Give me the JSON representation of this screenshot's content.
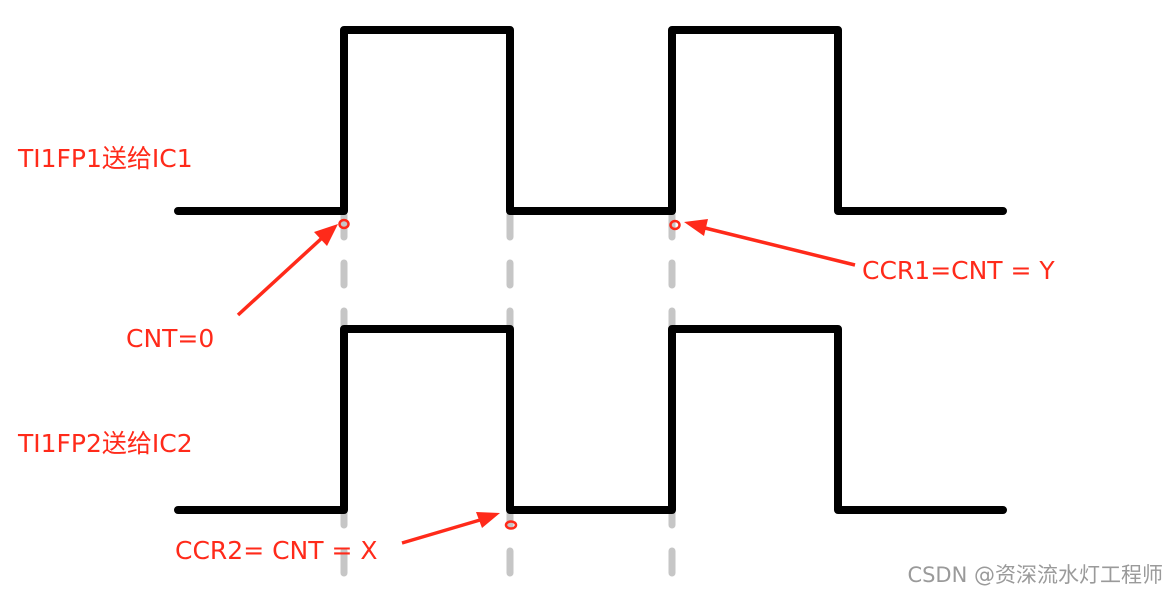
{
  "labels": {
    "signal1": "TI1FP1送给IC1",
    "signal2": "TI1FP2送给IC2",
    "cnt_zero": "CNT=0",
    "ccr1": "CCR1=CNT = Y",
    "ccr2": "CCR2= CNT = X"
  },
  "watermark": "CSDN @资深流水灯工程师",
  "colors": {
    "wave": "#000000",
    "annotation": "#ff2a1a",
    "guide": "#c6c6c6",
    "watermark": "#9a9a9a"
  }
}
